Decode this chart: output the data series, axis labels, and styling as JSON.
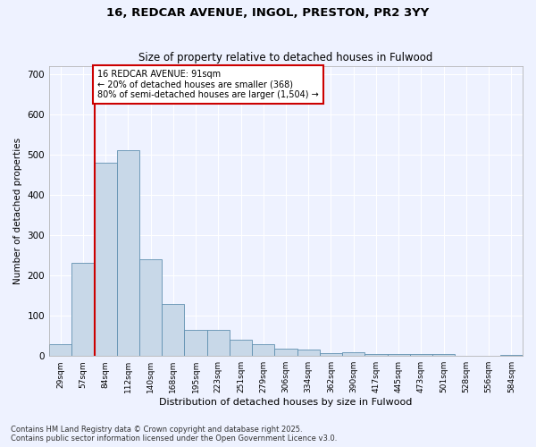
{
  "title_line1": "16, REDCAR AVENUE, INGOL, PRESTON, PR2 3YY",
  "title_line2": "Size of property relative to detached houses in Fulwood",
  "xlabel": "Distribution of detached houses by size in Fulwood",
  "ylabel": "Number of detached properties",
  "categories": [
    "29sqm",
    "57sqm",
    "84sqm",
    "112sqm",
    "140sqm",
    "168sqm",
    "195sqm",
    "223sqm",
    "251sqm",
    "279sqm",
    "306sqm",
    "334sqm",
    "362sqm",
    "390sqm",
    "417sqm",
    "445sqm",
    "473sqm",
    "501sqm",
    "528sqm",
    "556sqm",
    "584sqm"
  ],
  "values": [
    30,
    230,
    480,
    510,
    240,
    130,
    65,
    65,
    40,
    30,
    18,
    15,
    8,
    10,
    5,
    5,
    5,
    6,
    1,
    1,
    2
  ],
  "bar_color": "#c8d8e8",
  "bar_edge_color": "#6090b0",
  "vline_x_index": 2,
  "vline_color": "#cc0000",
  "annotation_text": "16 REDCAR AVENUE: 91sqm\n← 20% of detached houses are smaller (368)\n80% of semi-detached houses are larger (1,504) →",
  "annotation_box_color": "#ffffff",
  "annotation_box_edge": "#cc0000",
  "ylim": [
    0,
    720
  ],
  "yticks": [
    0,
    100,
    200,
    300,
    400,
    500,
    600,
    700
  ],
  "background_color": "#eef2ff",
  "grid_color": "#ffffff",
  "footer_line1": "Contains HM Land Registry data © Crown copyright and database right 2025.",
  "footer_line2": "Contains public sector information licensed under the Open Government Licence v3.0."
}
